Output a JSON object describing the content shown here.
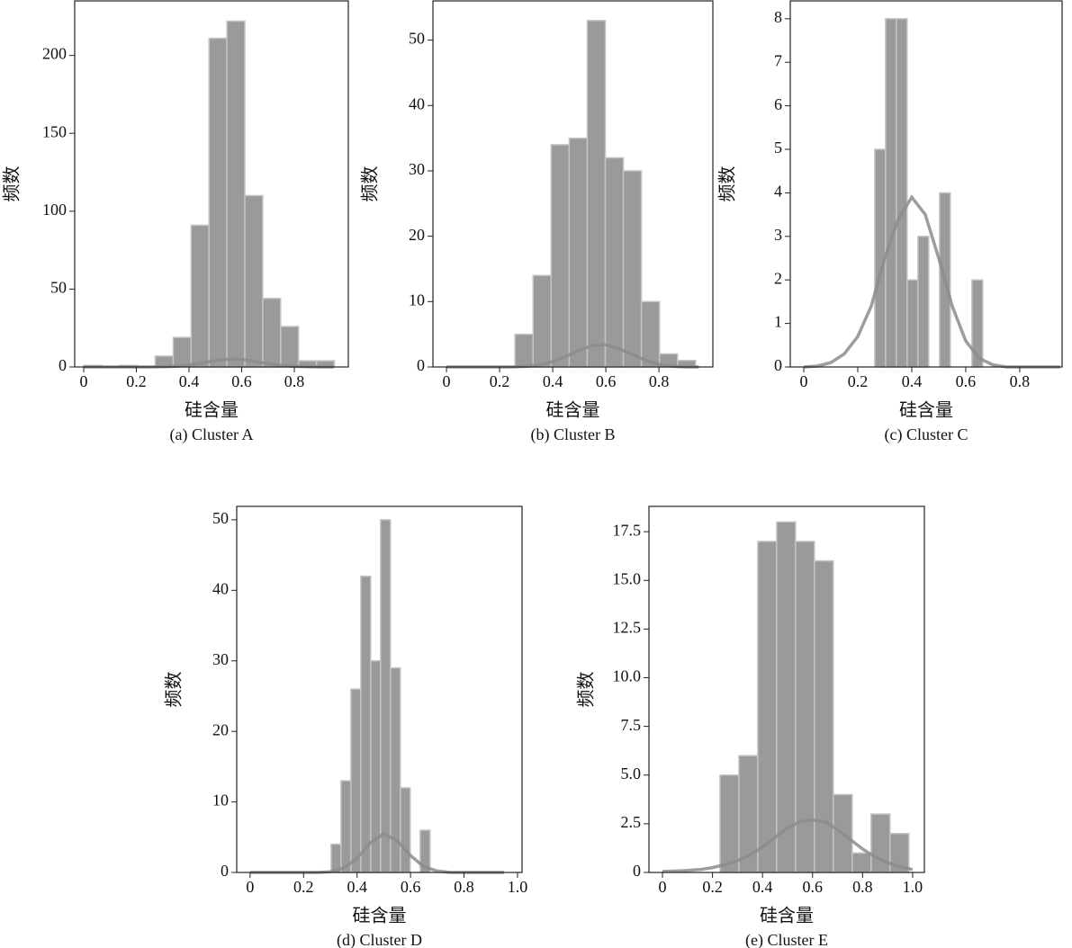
{
  "chart_data": [
    {
      "type": "histogram",
      "caption": "(a) Cluster A",
      "x_label": "硅含量",
      "y_label": "频数",
      "bins": [
        0,
        0.068,
        0.136,
        0.204,
        0.272,
        0.34,
        0.408,
        0.476,
        0.544,
        0.612,
        0.68,
        0.748,
        0.816,
        0.884,
        0.952
      ],
      "values": [
        1,
        0,
        1,
        0,
        7,
        19,
        91,
        211,
        222,
        110,
        44,
        26,
        4,
        4
      ],
      "density": {
        "x": [
          0,
          0.05,
          0.1,
          0.15,
          0.2,
          0.25,
          0.3,
          0.35,
          0.4,
          0.45,
          0.5,
          0.55,
          0.6,
          0.65,
          0.7,
          0.75,
          0.8,
          0.85,
          0.9,
          0.95
        ],
        "values": [
          0,
          0,
          0,
          0,
          0,
          0,
          0.1,
          0.4,
          1.2,
          2.6,
          4.1,
          5,
          4.8,
          3.6,
          2.1,
          1,
          0.4,
          0.1,
          0,
          0
        ]
      },
      "xlim": [
        -0.034,
        1.005
      ],
      "ylim": [
        0,
        235
      ],
      "xticks": [
        0,
        0.2,
        0.4,
        0.6,
        0.8
      ],
      "yticks": [
        0,
        50,
        100,
        150,
        200
      ],
      "color": "#9a9a9a",
      "line_color": "#8c8c8c"
    },
    {
      "type": "histogram",
      "caption": "(b) Cluster B",
      "x_label": "硅含量",
      "y_label": "频数",
      "bins": [
        0.258,
        0.326,
        0.394,
        0.462,
        0.53,
        0.598,
        0.666,
        0.734,
        0.802,
        0.87,
        0.938
      ],
      "values": [
        5,
        14,
        34,
        35,
        53,
        32,
        30,
        10,
        2,
        1
      ],
      "density": {
        "x": [
          0,
          0.05,
          0.1,
          0.15,
          0.2,
          0.25,
          0.3,
          0.35,
          0.4,
          0.45,
          0.5,
          0.55,
          0.6,
          0.65,
          0.7,
          0.75,
          0.8,
          0.85,
          0.9,
          0.95
        ],
        "values": [
          0,
          0,
          0,
          0,
          0,
          0,
          0.1,
          0.3,
          0.8,
          1.6,
          2.6,
          3.3,
          3.4,
          2.8,
          1.9,
          1,
          0.4,
          0.1,
          0,
          0
        ]
      },
      "xlim": [
        -0.051,
        1.003
      ],
      "ylim": [
        0,
        56
      ],
      "xticks": [
        0,
        0.2,
        0.4,
        0.6,
        0.8
      ],
      "yticks": [
        0,
        10,
        20,
        30,
        40,
        50
      ],
      "color": "#9a9a9a",
      "line_color": "#8c8c8c"
    },
    {
      "type": "histogram",
      "caption": "(c) Cluster C",
      "x_label": "硅含量",
      "y_label": "频数",
      "bins": [
        0.263,
        0.303,
        0.343,
        0.383,
        0.423,
        0.463,
        0.503,
        0.543,
        0.583,
        0.623,
        0.663
      ],
      "values": [
        5,
        8,
        8,
        2,
        3,
        0,
        4,
        0,
        0,
        2
      ],
      "density": {
        "x": [
          0,
          0.05,
          0.1,
          0.15,
          0.2,
          0.25,
          0.3,
          0.35,
          0.4,
          0.45,
          0.5,
          0.55,
          0.6,
          0.65,
          0.7,
          0.75,
          0.8,
          0.85,
          0.9,
          0.95
        ],
        "values": [
          0,
          0.02,
          0.1,
          0.3,
          0.7,
          1.4,
          2.5,
          3.4,
          3.9,
          3.5,
          2.5,
          1.4,
          0.6,
          0.2,
          0.05,
          0,
          0,
          0,
          0,
          0
        ]
      },
      "xlim": [
        -0.05,
        0.957
      ],
      "ylim": [
        0,
        8.41
      ],
      "xticks": [
        0,
        0.2,
        0.4,
        0.6,
        0.8
      ],
      "yticks": [
        0,
        1,
        2,
        3,
        4,
        5,
        6,
        7,
        8
      ],
      "color": "#9a9a9a",
      "line_color": "#8c8c8c"
    },
    {
      "type": "histogram",
      "caption": "(d) Cluster D",
      "x_label": "硅含量",
      "y_label": "频数",
      "bins": [
        0.303,
        0.34,
        0.377,
        0.414,
        0.451,
        0.488,
        0.525,
        0.562,
        0.599,
        0.636,
        0.673
      ],
      "values": [
        4,
        13,
        26,
        42,
        30,
        50,
        29,
        12,
        0,
        6
      ],
      "density": {
        "x": [
          0,
          0.05,
          0.1,
          0.15,
          0.2,
          0.25,
          0.3,
          0.35,
          0.4,
          0.45,
          0.5,
          0.55,
          0.6,
          0.65,
          0.7,
          0.75,
          0.8,
          0.85,
          0.9,
          0.95
        ],
        "values": [
          0,
          0,
          0,
          0,
          0,
          0,
          0.1,
          0.6,
          2,
          4.2,
          5.5,
          4.5,
          2.4,
          0.8,
          0.2,
          0,
          0,
          0,
          0,
          0
        ]
      },
      "xlim": [
        -0.05,
        1.017
      ],
      "ylim": [
        0,
        51.9
      ],
      "xticks": [
        0,
        0.2,
        0.4,
        0.6,
        0.8,
        {
          "value": 1,
          "label": "1.0"
        }
      ],
      "yticks": [
        0,
        10,
        20,
        30,
        40,
        50
      ],
      "color": "#9a9a9a",
      "line_color": "#8c8c8c"
    },
    {
      "type": "histogram",
      "caption": "(e) Cluster E",
      "x_label": "硅含量",
      "y_label": "频数",
      "bins": [
        0.23,
        0.3055,
        0.381,
        0.4565,
        0.532,
        0.6075,
        0.683,
        0.7585,
        0.834,
        0.9095,
        0.985
      ],
      "values": [
        5,
        6,
        17,
        18,
        17,
        16,
        4,
        1,
        3,
        2
      ],
      "density": {
        "x": [
          0,
          0.05,
          0.1,
          0.15,
          0.2,
          0.25,
          0.3,
          0.35,
          0.4,
          0.45,
          0.5,
          0.55,
          0.6,
          0.65,
          0.7,
          0.75,
          0.8,
          0.85,
          0.9,
          0.95,
          1
        ],
        "values": [
          0.05,
          0.07,
          0.1,
          0.15,
          0.25,
          0.4,
          0.6,
          0.9,
          1.3,
          1.8,
          2.3,
          2.6,
          2.7,
          2.6,
          2.2,
          1.7,
          1.2,
          0.8,
          0.5,
          0.3,
          0.15
        ]
      },
      "xlim": [
        -0.054,
        1.047
      ],
      "ylim": [
        0,
        18.8
      ],
      "xticks": [
        0,
        0.2,
        0.4,
        0.6,
        0.8,
        {
          "value": 1,
          "label": "1.0"
        }
      ],
      "yticks": [
        0,
        2.5,
        {
          "value": 5,
          "label": "5.0"
        },
        7.5,
        {
          "value": 10,
          "label": "10.0"
        },
        12.5,
        {
          "value": 15,
          "label": "15.0"
        },
        17.5
      ],
      "color": "#9a9a9a",
      "line_color": "#8c8c8c"
    }
  ]
}
